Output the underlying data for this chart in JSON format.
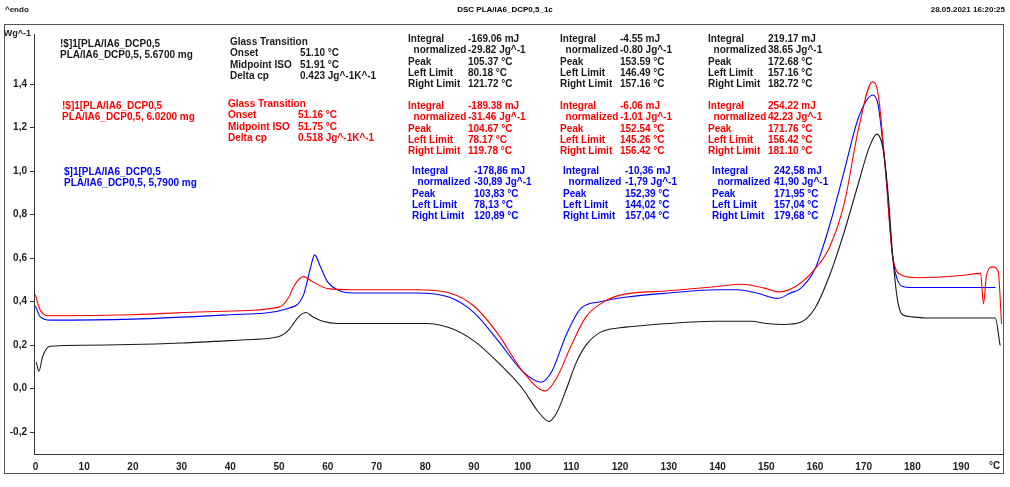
{
  "chart_data": {
    "type": "line",
    "title": "DSC PLA/IA6_DCP0,5_1c",
    "ylabel": "Wg^-1",
    "xlabel": "°C",
    "xlim": [
      -0.3,
      198.6
    ],
    "ylim": [
      -0.3,
      1.63
    ],
    "xticks": [
      0,
      10,
      20,
      30,
      40,
      50,
      60,
      70,
      80,
      90,
      100,
      110,
      120,
      130,
      140,
      150,
      160,
      170,
      180,
      190
    ],
    "yticks": [
      {
        "value": -0.2,
        "label": "-0,2"
      },
      {
        "value": 0,
        "label": "0,0"
      },
      {
        "value": 0.2,
        "label": "0,2"
      },
      {
        "value": 0.4,
        "label": "0,4"
      },
      {
        "value": 0.6,
        "label": "0,6"
      },
      {
        "value": 0.8,
        "label": "0,8"
      },
      {
        "value": 1.0,
        "label": "1,0"
      },
      {
        "value": 1.2,
        "label": "1,2"
      },
      {
        "value": 1.4,
        "label": "1,4"
      }
    ],
    "grid": false,
    "legend": "top left",
    "marker": "none",
    "line_style": "solid",
    "series": [
      {
        "name": "!$]1[PLA/IA6_DCP0,5\nPLA/IA6_DCP0,5, 5.6700 mg",
        "color": "#1a1a1a",
        "x": [
          0.2,
          0.7,
          1.5,
          3,
          10,
          30,
          43,
          50,
          52,
          54,
          55.5,
          57,
          59,
          62,
          80,
          85,
          90,
          95,
          100,
          103,
          105.4,
          107,
          109,
          111,
          113,
          116,
          120,
          122,
          130,
          140,
          147,
          150,
          153.6,
          157,
          160,
          163,
          166,
          169,
          171,
          172.7,
          174,
          175,
          176,
          177,
          178,
          180,
          183,
          190,
          197,
          198
        ],
        "values": [
          0.12,
          0.08,
          0.15,
          0.195,
          0.2,
          0.21,
          0.225,
          0.24,
          0.27,
          0.33,
          0.35,
          0.33,
          0.31,
          0.3,
          0.3,
          0.28,
          0.22,
          0.12,
          0.0,
          -0.1,
          -0.15,
          -0.11,
          0.0,
          0.12,
          0.2,
          0.26,
          0.28,
          0.285,
          0.3,
          0.31,
          0.31,
          0.3,
          0.295,
          0.305,
          0.37,
          0.52,
          0.72,
          0.95,
          1.1,
          1.17,
          1.1,
          0.9,
          0.6,
          0.4,
          0.34,
          0.33,
          0.325,
          0.325,
          0.325,
          0.2
        ]
      },
      {
        "name": "!$]1[PLA/IA6_DCP0,5\nPLA/IA6_DCP0,5, 6.0200 mg",
        "color": "#ff0000",
        "x": [
          0,
          1,
          3,
          20,
          37,
          50,
          52,
          53,
          55,
          57,
          60,
          65,
          78,
          85,
          90,
          95,
          100,
          104.7,
          107,
          110,
          113,
          116,
          120,
          130,
          140,
          145,
          150,
          152.5,
          156,
          160,
          163,
          166,
          169,
          171.8,
          173,
          174.5,
          176,
          178,
          181,
          190,
          194,
          194.6,
          195.2,
          196.5,
          197.6,
          198.3
        ],
        "values": [
          0.43,
          0.36,
          0.335,
          0.34,
          0.355,
          0.375,
          0.42,
          0.47,
          0.515,
          0.49,
          0.46,
          0.455,
          0.455,
          0.44,
          0.38,
          0.25,
          0.08,
          -0.01,
          0.05,
          0.2,
          0.33,
          0.39,
          0.43,
          0.45,
          0.47,
          0.48,
          0.46,
          0.445,
          0.47,
          0.55,
          0.65,
          0.85,
          1.2,
          1.41,
          1.35,
          1.0,
          0.6,
          0.52,
          0.51,
          0.52,
          0.53,
          0.39,
          0.52,
          0.56,
          0.54,
          0.3
        ]
      },
      {
        "name": "$]1[PLA/IA6_DCP0,5\nPLA/IA6_DCP0,5, 5,7900 mg",
        "color": "#0000ff",
        "x": [
          0,
          1,
          3,
          20,
          40,
          52,
          55,
          56.5,
          57.3,
          58.5,
          60,
          62,
          65,
          78,
          85,
          90,
          95,
          100,
          103.8,
          106,
          109,
          112,
          116,
          121,
          130,
          140,
          144,
          148,
          152.4,
          155,
          157,
          160,
          163,
          166,
          169,
          171.9,
          173,
          174.5,
          176,
          178,
          180,
          197
        ],
        "values": [
          0.38,
          0.33,
          0.315,
          0.32,
          0.34,
          0.37,
          0.43,
          0.56,
          0.615,
          0.56,
          0.49,
          0.455,
          0.44,
          0.44,
          0.42,
          0.35,
          0.22,
          0.08,
          0.03,
          0.08,
          0.25,
          0.37,
          0.4,
          0.42,
          0.44,
          0.455,
          0.455,
          0.44,
          0.415,
          0.44,
          0.46,
          0.55,
          0.75,
          1.0,
          1.25,
          1.35,
          1.3,
          1.0,
          0.6,
          0.47,
          0.465,
          0.465
        ]
      }
    ],
    "annotations": [
      "^endo",
      "28.05.2021 16:20:25",
      "Glass Transition\nOnset\t51.10 °C\nMidpoint ISO\t51.91 °C\nDelta cp\t0.423 Jg^-1K^-1",
      "Glass Transition\nOnset\t51.16 °C\nMidpoint ISO\t51.75 °C\nDelta cp\t0.518 Jg^-1K^-1",
      "Integral\t-169.06 mJ\n  normalized\t-29.82 Jg^-1\nPeak\t105.37 °C\nLeft Limit\t80.18 °C\nRight Limit\t121.72 °C",
      "Integral\t-4.55 mJ\n  normalized\t-0.80 Jg^-1\nPeak\t153.59 °C\nLeft Limit\t146.49 °C\nRight Limit\t157.16 °C",
      "Integral\t219.17 mJ\n  normalized\t38.65 Jg^-1\nPeak\t172.68 °C\nLeft Limit\t157.16 °C\nRight Limit\t182.72 °C",
      "Integral\t-189.38 mJ\n  normalized\t-31.46 Jg^-1\nPeak\t104.67 °C\nLeft Limit\t78.17 °C\nRight Limit\t119.78 °C",
      "Integral\t-6.06 mJ\n  normalized\t-1.01 Jg^-1\nPeak\t152.54 °C\nLeft Limit\t145.26 °C\nRight Limit\t156.42 °C",
      "Integral\t254.22 mJ\n  normalized\t42.23 Jg^-1\nPeak\t171.76 °C\nLeft Limit\t156.42 °C\nRight Limit\t181.10 °C",
      "Integral\t-178,86 mJ\n  normalized\t-30,89 Jg^-1\nPeak\t103,83 °C\nLeft Limit\t78,13 °C\nRight Limit\t120,89 °C",
      "Integral\t-10,36 mJ\n  normalized\t-1,79 Jg^-1\nPeak\t152,39 °C\nLeft Limit\t144,02 °C\nRight Limit\t157,04 °C",
      "Integral\t242,58 mJ\n  normalized\t41,90 Jg^-1\nPeak\t171,95 °C\nLeft Limit\t157,04 °C\nRight Limit\t179,68 °C"
    ]
  }
}
